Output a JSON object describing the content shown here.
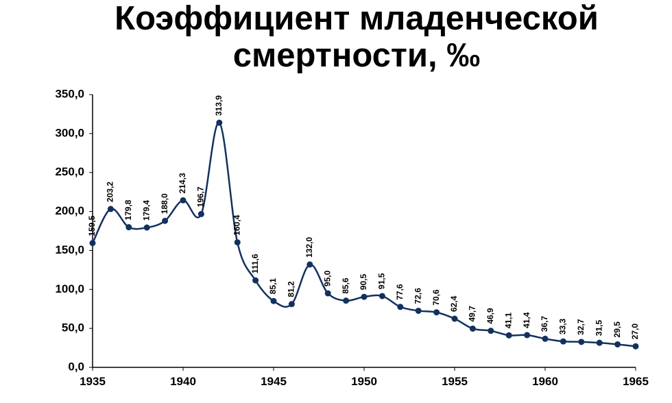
{
  "chart_data": {
    "type": "line",
    "title": "Коэффициент младенческой смертности, ‰",
    "x": [
      1935,
      1936,
      1937,
      1938,
      1939,
      1940,
      1941,
      1942,
      1943,
      1944,
      1945,
      1946,
      1947,
      1948,
      1949,
      1950,
      1951,
      1952,
      1953,
      1954,
      1955,
      1956,
      1957,
      1958,
      1959,
      1960,
      1961,
      1962,
      1963,
      1964,
      1965
    ],
    "series": [
      {
        "name": "Коэффициент младенческой смертности",
        "color": "#13305e",
        "values": [
          159.5,
          203.2,
          179.8,
          179.4,
          188.0,
          214.3,
          196.7,
          313.9,
          160.4,
          111.6,
          85.1,
          81.2,
          132.0,
          95.0,
          85.6,
          90.5,
          91.5,
          77.6,
          72.6,
          70.6,
          62.4,
          49.7,
          46.9,
          41.1,
          41.4,
          36.7,
          33.3,
          32.7,
          31.5,
          29.5,
          27.0
        ],
        "value_labels": [
          "159,5",
          "203,2",
          "179,8",
          "179,4",
          "188,0",
          "214,3",
          "196,7",
          "313,9",
          "160,4",
          "111,6",
          "85,1",
          "81,2",
          "132,0",
          "95,0",
          "85,6",
          "90,5",
          "91,5",
          "77,6",
          "72,6",
          "70,6",
          "62,4",
          "49,7",
          "46,9",
          "41,1",
          "41,4",
          "36,7",
          "33,3",
          "32,7",
          "31,5",
          "29,5",
          "27,0"
        ]
      }
    ],
    "xlim": [
      1935,
      1965
    ],
    "xticks": [
      1935,
      1940,
      1945,
      1950,
      1955,
      1960,
      1965
    ],
    "ylim": [
      0,
      350
    ],
    "yticks": [
      {
        "value": 0,
        "label": "0,0"
      },
      {
        "value": 50,
        "label": "50,0"
      },
      {
        "value": 100,
        "label": "100,0"
      },
      {
        "value": 150,
        "label": "150,0"
      },
      {
        "value": 200,
        "label": "200,0"
      },
      {
        "value": 250,
        "label": "250,0"
      },
      {
        "value": 300,
        "label": "300,0"
      },
      {
        "value": 350,
        "label": "350,0"
      }
    ]
  }
}
